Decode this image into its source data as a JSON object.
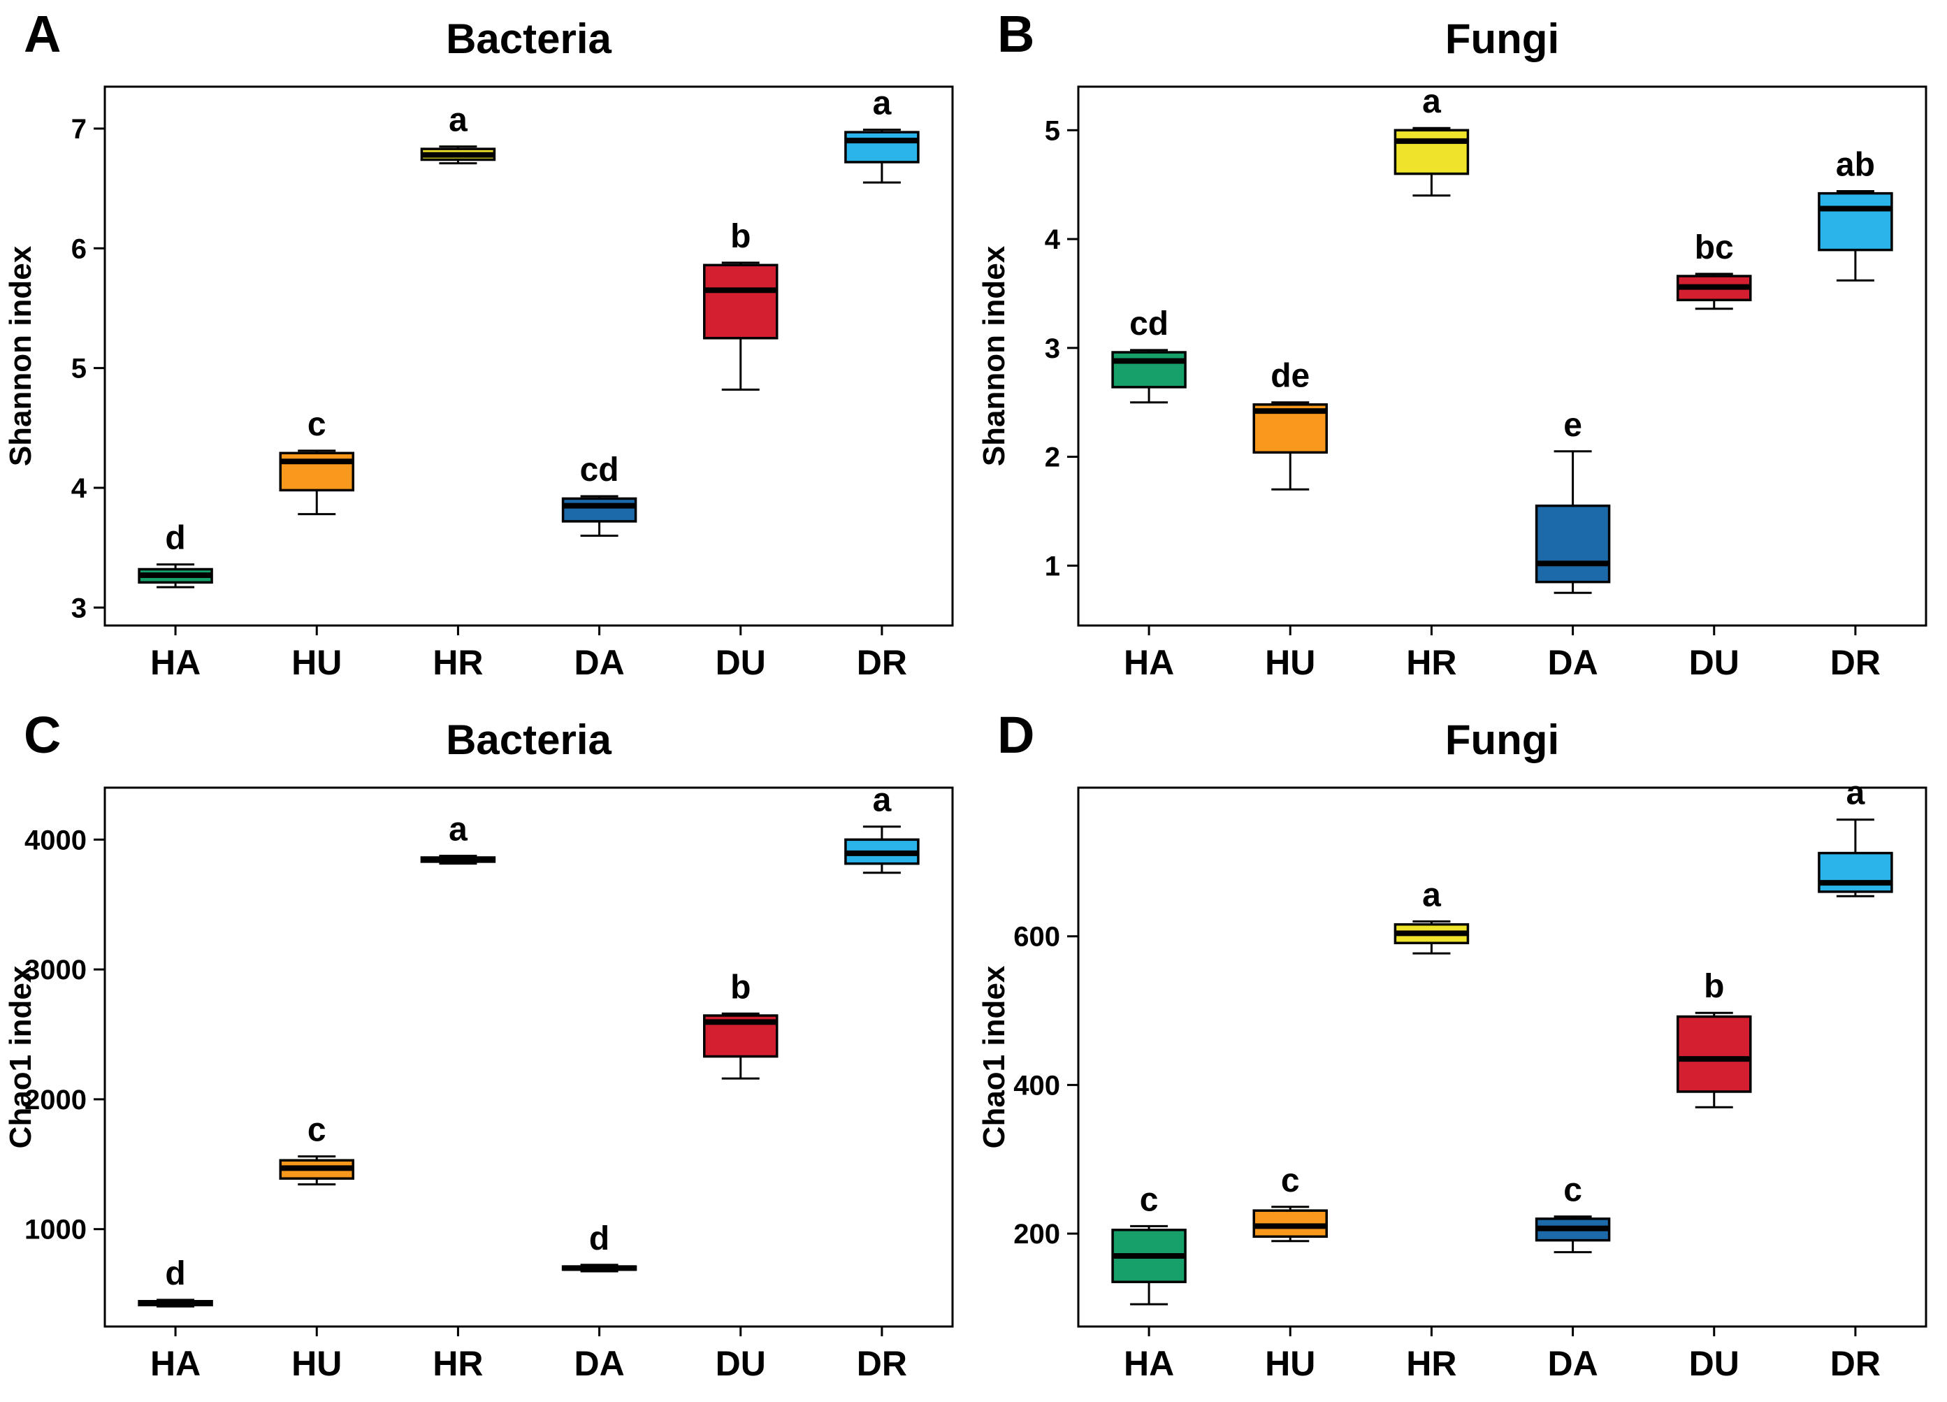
{
  "chart_data": [
    {
      "type": "box",
      "panel_label": "A",
      "title": "Bacteria",
      "ylabel": "Shannon index",
      "ylim": [
        2.85,
        7.35
      ],
      "yticks": [
        3,
        4,
        5,
        6,
        7
      ],
      "categories": [
        "HA",
        "HU",
        "HR",
        "DA",
        "DU",
        "DR"
      ],
      "colors": [
        "#18a06b",
        "#f8991d",
        "#efe32b",
        "#1d6aab",
        "#d31f30",
        "#2bb4e9"
      ],
      "letters": [
        "d",
        "c",
        "a",
        "cd",
        "b",
        "a"
      ],
      "boxes": [
        {
          "whislo": 3.17,
          "q1": 3.21,
          "med": 3.27,
          "q3": 3.32,
          "whishi": 3.36
        },
        {
          "whislo": 3.78,
          "q1": 3.98,
          "med": 4.22,
          "q3": 4.29,
          "whishi": 4.31
        },
        {
          "whislo": 6.71,
          "q1": 6.74,
          "med": 6.78,
          "q3": 6.83,
          "whishi": 6.85
        },
        {
          "whislo": 3.6,
          "q1": 3.72,
          "med": 3.85,
          "q3": 3.91,
          "whishi": 3.93
        },
        {
          "whislo": 4.82,
          "q1": 5.25,
          "med": 5.65,
          "q3": 5.86,
          "whishi": 5.88
        },
        {
          "whislo": 6.55,
          "q1": 6.72,
          "med": 6.9,
          "q3": 6.97,
          "whishi": 6.99
        }
      ]
    },
    {
      "type": "box",
      "panel_label": "B",
      "title": "Fungi",
      "ylabel": "Shannon index",
      "ylim": [
        0.45,
        5.4
      ],
      "yticks": [
        1,
        2,
        3,
        4,
        5
      ],
      "categories": [
        "HA",
        "HU",
        "HR",
        "DA",
        "DU",
        "DR"
      ],
      "colors": [
        "#18a06b",
        "#f8991d",
        "#efe32b",
        "#1d6aab",
        "#d31f30",
        "#2bb4e9"
      ],
      "letters": [
        "cd",
        "de",
        "a",
        "e",
        "bc",
        "ab"
      ],
      "boxes": [
        {
          "whislo": 2.5,
          "q1": 2.64,
          "med": 2.88,
          "q3": 2.96,
          "whishi": 2.98
        },
        {
          "whislo": 1.7,
          "q1": 2.04,
          "med": 2.42,
          "q3": 2.48,
          "whishi": 2.5
        },
        {
          "whislo": 4.4,
          "q1": 4.6,
          "med": 4.9,
          "q3": 5.0,
          "whishi": 5.02
        },
        {
          "whislo": 0.75,
          "q1": 0.85,
          "med": 1.02,
          "q3": 1.55,
          "whishi": 2.05
        },
        {
          "whislo": 3.36,
          "q1": 3.44,
          "med": 3.56,
          "q3": 3.66,
          "whishi": 3.68
        },
        {
          "whislo": 3.62,
          "q1": 3.9,
          "med": 4.28,
          "q3": 4.42,
          "whishi": 4.44
        }
      ]
    },
    {
      "type": "box",
      "panel_label": "C",
      "title": "Bacteria",
      "ylabel": "Chao1 index",
      "ylim": [
        250,
        4400
      ],
      "yticks": [
        1000,
        2000,
        3000,
        4000
      ],
      "categories": [
        "HA",
        "HU",
        "HR",
        "DA",
        "DU",
        "DR"
      ],
      "colors": [
        "#18a06b",
        "#f8991d",
        "#efe32b",
        "#1d6aab",
        "#d31f30",
        "#2bb4e9"
      ],
      "letters": [
        "d",
        "c",
        "a",
        "d",
        "b",
        "a"
      ],
      "boxes": [
        {
          "whislo": 405,
          "q1": 415,
          "med": 430,
          "q3": 445,
          "whishi": 455
        },
        {
          "whislo": 1345,
          "q1": 1390,
          "med": 1470,
          "q3": 1530,
          "whishi": 1560
        },
        {
          "whislo": 3815,
          "q1": 3830,
          "med": 3845,
          "q3": 3862,
          "whishi": 3875
        },
        {
          "whislo": 675,
          "q1": 688,
          "med": 700,
          "q3": 712,
          "whishi": 725
        },
        {
          "whislo": 2160,
          "q1": 2330,
          "med": 2595,
          "q3": 2645,
          "whishi": 2660
        },
        {
          "whislo": 3745,
          "q1": 3815,
          "med": 3895,
          "q3": 4000,
          "whishi": 4100
        }
      ]
    },
    {
      "type": "box",
      "panel_label": "D",
      "title": "Fungi",
      "ylabel": "Chao1 index",
      "ylim": [
        75,
        800
      ],
      "yticks": [
        200,
        400,
        600
      ],
      "categories": [
        "HA",
        "HU",
        "HR",
        "DA",
        "DU",
        "DR"
      ],
      "colors": [
        "#18a06b",
        "#f8991d",
        "#efe32b",
        "#1d6aab",
        "#d31f30",
        "#2bb4e9"
      ],
      "letters": [
        "c",
        "c",
        "a",
        "c",
        "b",
        "a"
      ],
      "boxes": [
        {
          "whislo": 105,
          "q1": 135,
          "med": 170,
          "q3": 205,
          "whishi": 210
        },
        {
          "whislo": 190,
          "q1": 196,
          "med": 210,
          "q3": 231,
          "whishi": 236
        },
        {
          "whislo": 577,
          "q1": 591,
          "med": 604,
          "q3": 616,
          "whishi": 620
        },
        {
          "whislo": 175,
          "q1": 191,
          "med": 207,
          "q3": 220,
          "whishi": 223
        },
        {
          "whislo": 370,
          "q1": 391,
          "med": 435,
          "q3": 492,
          "whishi": 497
        },
        {
          "whislo": 654,
          "q1": 660,
          "med": 672,
          "q3": 712,
          "whishi": 757
        }
      ]
    }
  ]
}
